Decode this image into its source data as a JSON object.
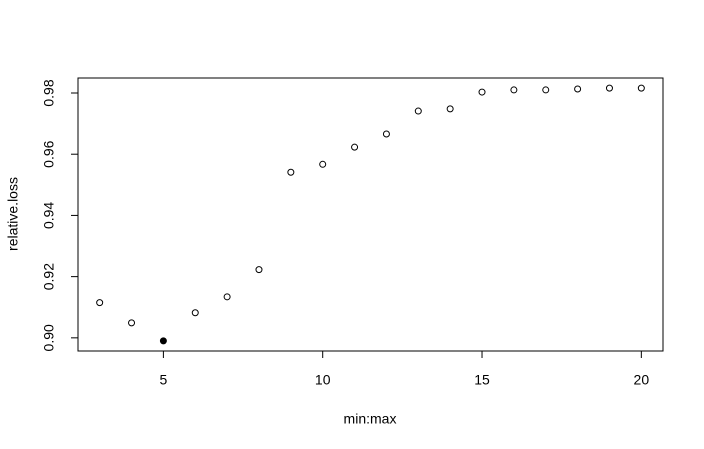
{
  "chart_data": {
    "type": "scatter",
    "x_label": "min:max",
    "y_label": "relative.loss",
    "x": [
      3,
      4,
      5,
      6,
      7,
      8,
      9,
      10,
      11,
      12,
      13,
      14,
      15,
      16,
      17,
      18,
      19,
      20
    ],
    "values": [
      0.9115,
      0.9049,
      0.899,
      0.9082,
      0.9134,
      0.9223,
      0.9541,
      0.9567,
      0.9623,
      0.9666,
      0.9741,
      0.9748,
      0.9803,
      0.981,
      0.981,
      0.9813,
      0.9816,
      0.9816
    ],
    "filled": [
      false,
      false,
      true,
      false,
      false,
      false,
      false,
      false,
      false,
      false,
      false,
      false,
      false,
      false,
      false,
      false,
      false,
      false
    ],
    "color": "#000000",
    "xlim": [
      2.32,
      20.68
    ],
    "ylim": [
      0.8957,
      0.9849
    ],
    "xticks": [
      5,
      10,
      15,
      20
    ],
    "yticks": [
      {
        "value": 0.9,
        "label": "0.90"
      },
      {
        "value": 0.92,
        "label": "0.92"
      },
      0.94,
      0.96,
      0.98
    ]
  }
}
